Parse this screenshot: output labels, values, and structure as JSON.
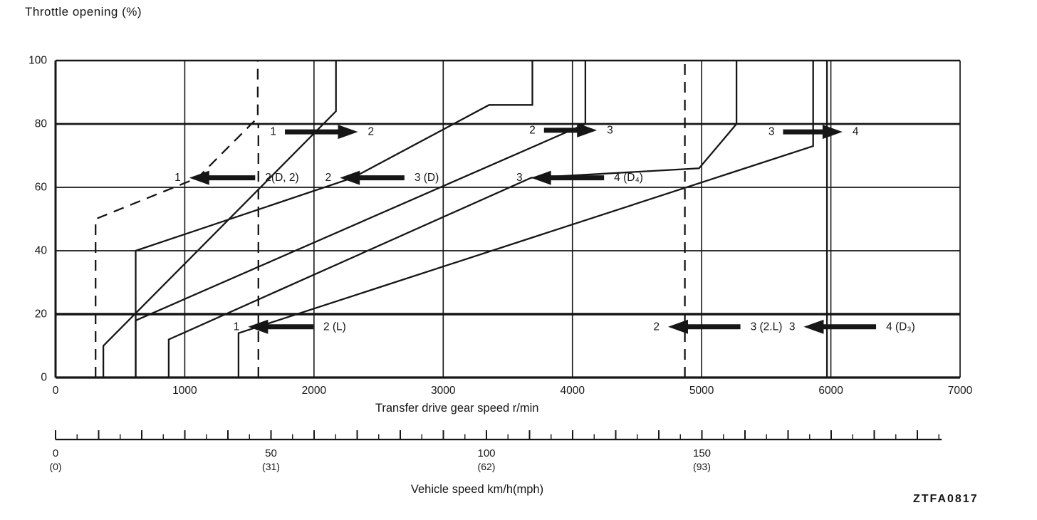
{
  "page": {
    "title": "Throttle opening (%)",
    "figure_code": "ZTFA0817",
    "ink": "#161616",
    "background": "#ffffff"
  },
  "chart_data": {
    "type": "line",
    "title": "Throttle opening (%)",
    "xlabel": "Transfer drive gear speed r/min",
    "ylabel": "Throttle opening (%)",
    "x2label": "Vehicle speed km/h(mph)",
    "xlim": [
      0,
      7000
    ],
    "ylim": [
      0,
      100
    ],
    "x_ticks": [
      0,
      1000,
      2000,
      3000,
      4000,
      5000,
      6000,
      7000
    ],
    "y_ticks": [
      0,
      20,
      40,
      60,
      80,
      100
    ],
    "grid": true,
    "legend_position": "none",
    "speed_axis": {
      "label": "Vehicle speed km/h(mph)",
      "max_kmh": 205,
      "major_tick_step": 10,
      "minor_tick_step": 5,
      "labels": [
        {
          "value": 0,
          "kmh": "0",
          "mph": "(0)"
        },
        {
          "value": 50,
          "kmh": "50",
          "mph": "(31)"
        },
        {
          "value": 100,
          "kmh": "100",
          "mph": "(62)"
        },
        {
          "value": 150,
          "kmh": "150",
          "mph": "(93)"
        }
      ]
    },
    "series": [
      {
        "name": "1-2 upshift",
        "shift": "upshift",
        "line": "solid",
        "points": [
          [
            370,
            0
          ],
          [
            370,
            10
          ],
          [
            2170,
            84
          ],
          [
            2170,
            100
          ]
        ]
      },
      {
        "name": "2-3 upshift",
        "shift": "upshift",
        "line": "solid",
        "points": [
          [
            620,
            0
          ],
          [
            620,
            18
          ],
          [
            4100,
            80
          ],
          [
            4100,
            100
          ]
        ]
      },
      {
        "name": "3-4 upshift",
        "shift": "upshift",
        "line": "solid",
        "points": [
          [
            1416,
            0
          ],
          [
            1416,
            14
          ],
          [
            5863,
            73
          ],
          [
            5863,
            100
          ]
        ]
      },
      {
        "name": "2-1 downshift (D, 2)",
        "shift": "downshift",
        "line": "dashed",
        "points": [
          [
            310,
            0
          ],
          [
            310,
            50
          ],
          [
            1100,
            63
          ],
          [
            1565,
            82
          ],
          [
            1565,
            100
          ]
        ]
      },
      {
        "name": "3-2 downshift (D)",
        "shift": "downshift",
        "line": "solid",
        "points": [
          [
            620,
            0
          ],
          [
            620,
            40
          ],
          [
            2300,
            63
          ],
          [
            3355,
            86
          ],
          [
            3690,
            86
          ],
          [
            3690,
            100
          ]
        ]
      },
      {
        "name": "4-3 downshift (D4)",
        "shift": "downshift",
        "line": "solid",
        "points": [
          [
            876,
            0
          ],
          [
            876,
            12
          ],
          [
            3680,
            63
          ],
          [
            4980,
            66
          ],
          [
            5270,
            80
          ],
          [
            5270,
            100
          ]
        ]
      },
      {
        "name": "2-1 downshift (L)",
        "shift": "downshift",
        "line": "dashed",
        "points": [
          [
            1570,
            0
          ],
          [
            1570,
            80
          ]
        ]
      },
      {
        "name": "3-2 downshift (2.L)",
        "shift": "downshift",
        "line": "dashed",
        "points": [
          [
            4870,
            0
          ],
          [
            4870,
            100
          ]
        ]
      },
      {
        "name": "4-3 downshift (D3)",
        "shift": "downshift",
        "line": "solid",
        "points": [
          [
            5970,
            0
          ],
          [
            5970,
            100
          ]
        ]
      }
    ],
    "arrows": [
      {
        "id": "up-1-2",
        "direction": "right",
        "y_pct": 77.5,
        "tail_rpm": 1775,
        "tip_rpm": 2340,
        "from_label": "1",
        "to_label": "2"
      },
      {
        "id": "up-2-3",
        "direction": "right",
        "y_pct": 78,
        "tail_rpm": 3780,
        "tip_rpm": 4190,
        "from_label": "2",
        "to_label": "3"
      },
      {
        "id": "up-3-4",
        "direction": "right",
        "y_pct": 77.5,
        "tail_rpm": 5630,
        "tip_rpm": 6090,
        "from_label": "3",
        "to_label": "4"
      },
      {
        "id": "down-2-1-d2",
        "direction": "left",
        "y_pct": 63,
        "tail_rpm": 1545,
        "tip_rpm": 1035,
        "from_label": "1",
        "to_label": "2(D, 2)"
      },
      {
        "id": "down-3-2-d",
        "direction": "left",
        "y_pct": 63,
        "tail_rpm": 2700,
        "tip_rpm": 2200,
        "from_label": "2",
        "to_label": "3 (D)"
      },
      {
        "id": "down-4-3-d4",
        "direction": "left",
        "y_pct": 63,
        "tail_rpm": 4245,
        "tip_rpm": 3680,
        "from_label": "3",
        "to_label": "4 (D₄)"
      },
      {
        "id": "down-2-1-l",
        "direction": "left",
        "y_pct": 16,
        "tail_rpm": 1995,
        "tip_rpm": 1490,
        "from_label": "1",
        "to_label": "2 (L)"
      },
      {
        "id": "down-3-2-2l",
        "direction": "left",
        "y_pct": 16,
        "tail_rpm": 5300,
        "tip_rpm": 4740,
        "from_label": "2",
        "to_label": "3 (2.L)"
      },
      {
        "id": "down-4-3-d3",
        "direction": "left",
        "y_pct": 16,
        "tail_rpm": 6350,
        "tip_rpm": 5790,
        "from_label": "3",
        "to_label": "4 (D₃)"
      }
    ]
  }
}
